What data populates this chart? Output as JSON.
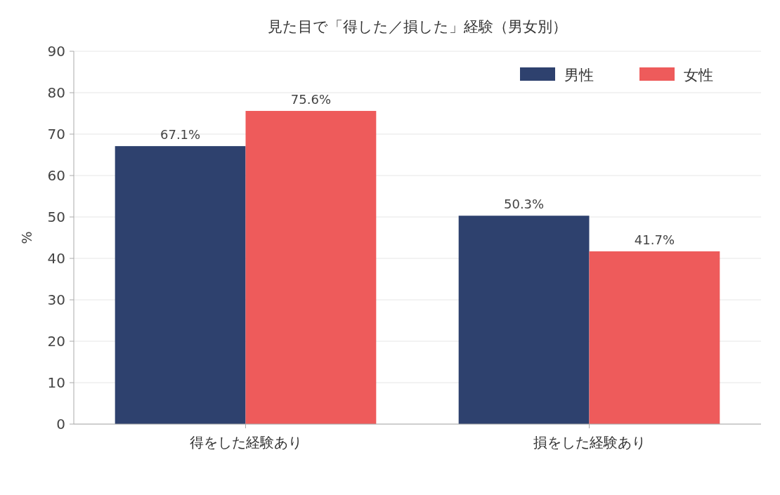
{
  "chart_data": {
    "type": "bar",
    "title": "見た目で「得した／損した」経験（男女別）",
    "ylabel": "%",
    "categories": [
      "得をした経験あり",
      "損をした経験あり"
    ],
    "series": [
      {
        "name": "男性",
        "color": "#2e416e",
        "values": [
          67.1,
          50.3
        ],
        "value_labels": [
          "67.1%",
          "50.3%"
        ]
      },
      {
        "name": "女性",
        "color": "#ee5b5b",
        "values": [
          75.6,
          41.7
        ],
        "value_labels": [
          "75.6%",
          "41.7%"
        ]
      }
    ],
    "ylim": [
      0,
      90
    ],
    "yticks": [
      0,
      10,
      20,
      30,
      40,
      50,
      60,
      70,
      80,
      90
    ],
    "grid": "y",
    "legend": "top right"
  }
}
